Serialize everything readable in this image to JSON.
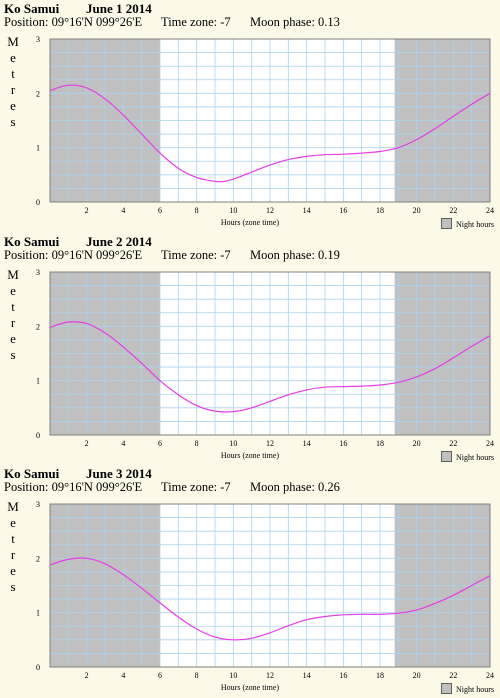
{
  "colors": {
    "background": "#fcf9e8",
    "night": "#c0c0c0",
    "grid": "#aad4ee",
    "curve": "#e83ce8"
  },
  "x_axis_label": "Hours (zone time)",
  "legend_label": "Night hours",
  "y_axis_label": "Metres",
  "chart_data": [
    {
      "type": "line",
      "location": "Ko Samui",
      "date": "June 1 2014",
      "position": "Position: 09°16'N 099°26'E",
      "time_zone": "Time zone: -7",
      "moon_phase": "Moon phase: 0.13",
      "xlabel": "Hours (zone time)",
      "ylabel": "Metres",
      "xlim": [
        0,
        24
      ],
      "ylim": [
        0,
        3
      ],
      "x_ticks": [
        2,
        4,
        6,
        8,
        10,
        12,
        14,
        16,
        18,
        20,
        22,
        24
      ],
      "y_ticks": [
        0,
        1,
        2,
        3
      ],
      "night_hours": [
        [
          0,
          6.0
        ],
        [
          18.8,
          24
        ]
      ],
      "grid": true,
      "legend": "bottom-right",
      "x": [
        0,
        1,
        2,
        3,
        4,
        5,
        6,
        7,
        8,
        9,
        9.5,
        10,
        11,
        12,
        13,
        14,
        15,
        16,
        17,
        18,
        19,
        20,
        21,
        22,
        23,
        24
      ],
      "y": [
        2.05,
        2.15,
        2.1,
        1.9,
        1.6,
        1.25,
        0.9,
        0.62,
        0.45,
        0.38,
        0.38,
        0.42,
        0.55,
        0.68,
        0.78,
        0.84,
        0.87,
        0.88,
        0.9,
        0.93,
        1.0,
        1.15,
        1.35,
        1.58,
        1.8,
        2.0
      ]
    },
    {
      "type": "line",
      "location": "Ko Samui",
      "date": "June 2 2014",
      "position": "Position: 09°16'N 099°26'E",
      "time_zone": "Time zone: -7",
      "moon_phase": "Moon phase: 0.19",
      "xlabel": "Hours (zone time)",
      "ylabel": "Metres",
      "xlim": [
        0,
        24
      ],
      "ylim": [
        0,
        3
      ],
      "x_ticks": [
        2,
        4,
        6,
        8,
        10,
        12,
        14,
        16,
        18,
        20,
        22,
        24
      ],
      "y_ticks": [
        0,
        1,
        2,
        3
      ],
      "night_hours": [
        [
          0,
          6.0
        ],
        [
          18.8,
          24
        ]
      ],
      "grid": true,
      "legend": "bottom-right",
      "x": [
        0,
        1,
        2,
        3,
        4,
        5,
        6,
        7,
        8,
        9,
        10,
        11,
        12,
        13,
        14,
        15,
        16,
        17,
        18,
        19,
        20,
        21,
        22,
        23,
        24
      ],
      "y": [
        1.98,
        2.08,
        2.05,
        1.88,
        1.62,
        1.32,
        1.0,
        0.74,
        0.54,
        0.44,
        0.43,
        0.5,
        0.62,
        0.74,
        0.83,
        0.88,
        0.89,
        0.9,
        0.92,
        0.97,
        1.07,
        1.22,
        1.42,
        1.63,
        1.83
      ]
    },
    {
      "type": "line",
      "location": "Ko Samui",
      "date": "June 3 2014",
      "position": "Position: 09°16'N 099°26'E",
      "time_zone": "Time zone: -7",
      "moon_phase": "Moon phase: 0.26",
      "xlabel": "Hours (zone time)",
      "ylabel": "Metres",
      "xlim": [
        0,
        24
      ],
      "ylim": [
        0,
        3
      ],
      "x_ticks": [
        2,
        4,
        6,
        8,
        10,
        12,
        14,
        16,
        18,
        20,
        22,
        24
      ],
      "y_ticks": [
        0,
        1,
        2,
        3
      ],
      "night_hours": [
        [
          0,
          6.0
        ],
        [
          18.8,
          24
        ]
      ],
      "grid": true,
      "legend": "bottom-right",
      "x": [
        0,
        1,
        2,
        3,
        4,
        5,
        6,
        7,
        8,
        9,
        10,
        11,
        12,
        13,
        14,
        15,
        16,
        17,
        18,
        19,
        20,
        21,
        22,
        23,
        24
      ],
      "y": [
        1.88,
        1.98,
        2.0,
        1.9,
        1.7,
        1.45,
        1.18,
        0.92,
        0.7,
        0.55,
        0.5,
        0.53,
        0.63,
        0.76,
        0.87,
        0.93,
        0.96,
        0.97,
        0.97,
        0.99,
        1.05,
        1.17,
        1.32,
        1.5,
        1.68
      ]
    }
  ]
}
